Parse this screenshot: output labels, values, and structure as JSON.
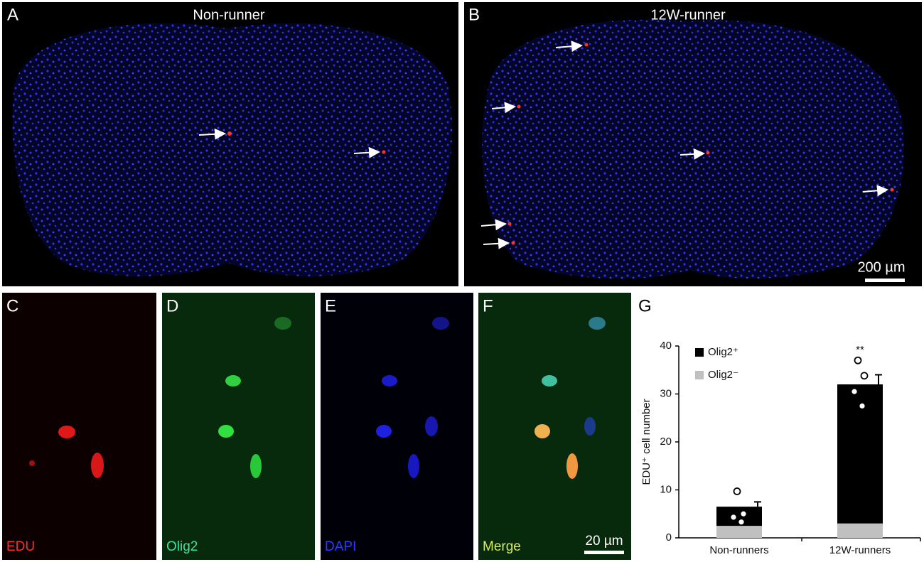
{
  "panels": [
    {
      "label": "A",
      "title": "Non-runner"
    },
    {
      "label": "B",
      "title": "12W-runner",
      "scale_bar": "200 µm"
    },
    {
      "label": "C",
      "channel": "EDU"
    },
    {
      "label": "D",
      "channel": "Olig2"
    },
    {
      "label": "E",
      "channel": "DAPI"
    },
    {
      "label": "F",
      "channel": "Merge",
      "scale_bar": "20 µm"
    },
    {
      "label": "G"
    }
  ],
  "chart_data": {
    "type": "stacked_bar",
    "ylabel": "EDU⁺ cell number",
    "categories": [
      "Non-runners",
      "12W-runners"
    ],
    "series": [
      {
        "name": "Olig2⁺",
        "color": "#000000",
        "values": [
          4,
          29
        ],
        "errors": [
          1,
          2
        ]
      },
      {
        "name": "Olig2⁻",
        "color": "#c0c0c0",
        "values": [
          2.5,
          3
        ]
      }
    ],
    "points": [
      [
        9.7,
        5,
        4.3,
        3.3
      ],
      [
        37,
        33.8,
        30.5,
        27.5
      ]
    ],
    "annotations": [
      "",
      "**"
    ],
    "ylim": [
      0,
      40
    ],
    "yticks": [
      0,
      10,
      20,
      30,
      40
    ]
  }
}
